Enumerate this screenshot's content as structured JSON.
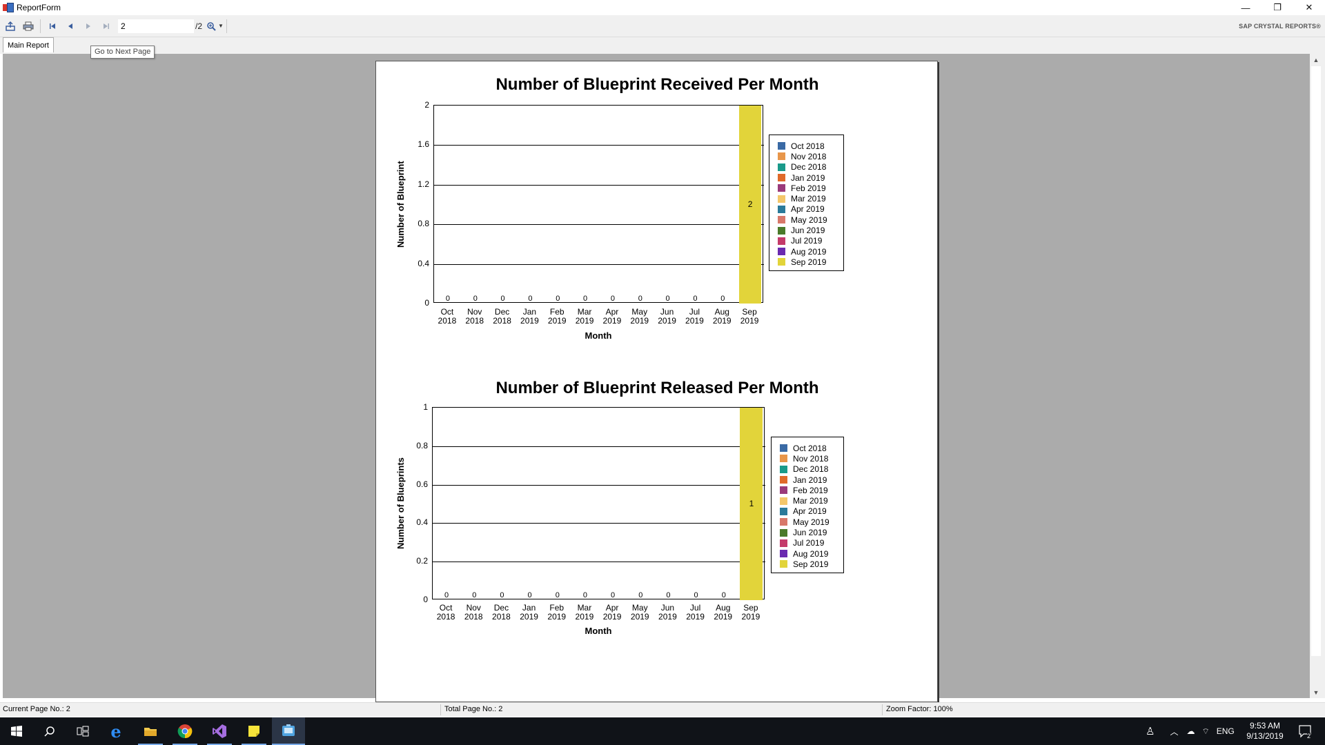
{
  "window": {
    "title": "ReportForm",
    "controls": {
      "minimize": "—",
      "restore": "❐",
      "close": "✕"
    }
  },
  "toolbar": {
    "page_value": "2",
    "page_total": "/2",
    "brand": "SAP CRYSTAL REPORTS®",
    "icons": [
      "export-icon",
      "print-icon",
      "first-page-icon",
      "previous-page-icon",
      "next-page-icon",
      "last-page-icon",
      "zoom-icon"
    ]
  },
  "tabs": [
    {
      "label": "Main Report"
    }
  ],
  "tooltip": "Go to Next Page",
  "chart_data": [
    {
      "type": "bar",
      "title": "Number of Blueprint Received Per Month",
      "xlabel": "Month",
      "ylabel": "Number of Blueprint",
      "ylim": [
        0,
        2
      ],
      "yticks": [
        "0",
        "0.4",
        "0.8",
        "1.2",
        "1.6",
        "2"
      ],
      "categories": [
        "Oct 2018",
        "Nov 2018",
        "Dec 2018",
        "Jan 2019",
        "Feb 2019",
        "Mar 2019",
        "Apr 2019",
        "May 2019",
        "Jun 2019",
        "Jul 2019",
        "Aug 2019",
        "Sep 2019"
      ],
      "category_lines": [
        [
          "Oct",
          "2018"
        ],
        [
          "Nov",
          "2018"
        ],
        [
          "Dec",
          "2018"
        ],
        [
          "Jan",
          "2019"
        ],
        [
          "Feb",
          "2019"
        ],
        [
          "Mar",
          "2019"
        ],
        [
          "Apr",
          "2019"
        ],
        [
          "May",
          "2019"
        ],
        [
          "Jun",
          "2019"
        ],
        [
          "Jul",
          "2019"
        ],
        [
          "Aug",
          "2019"
        ],
        [
          "Sep",
          "2019"
        ]
      ],
      "values": [
        0,
        0,
        0,
        0,
        0,
        0,
        0,
        0,
        0,
        0,
        0,
        2
      ],
      "value_labels": [
        "0",
        "0",
        "0",
        "0",
        "0",
        "0",
        "0",
        "0",
        "0",
        "0",
        "0",
        "2"
      ],
      "grid": true,
      "legend_position": "right"
    },
    {
      "type": "bar",
      "title": "Number of Blueprint Released Per Month",
      "xlabel": "Month",
      "ylabel": "Number of Blueprints",
      "ylim": [
        0,
        1
      ],
      "yticks": [
        "0",
        "0.2",
        "0.4",
        "0.6",
        "0.8",
        "1"
      ],
      "categories": [
        "Oct 2018",
        "Nov 2018",
        "Dec 2018",
        "Jan 2019",
        "Feb 2019",
        "Mar 2019",
        "Apr 2019",
        "May 2019",
        "Jun 2019",
        "Jul 2019",
        "Aug 2019",
        "Sep 2019"
      ],
      "category_lines": [
        [
          "Oct",
          "2018"
        ],
        [
          "Nov",
          "2018"
        ],
        [
          "Dec",
          "2018"
        ],
        [
          "Jan",
          "2019"
        ],
        [
          "Feb",
          "2019"
        ],
        [
          "Mar",
          "2019"
        ],
        [
          "Apr",
          "2019"
        ],
        [
          "May",
          "2019"
        ],
        [
          "Jun",
          "2019"
        ],
        [
          "Jul",
          "2019"
        ],
        [
          "Aug",
          "2019"
        ],
        [
          "Sep",
          "2019"
        ]
      ],
      "values": [
        0,
        0,
        0,
        0,
        0,
        0,
        0,
        0,
        0,
        0,
        0,
        1
      ],
      "value_labels": [
        "0",
        "0",
        "0",
        "0",
        "0",
        "0",
        "0",
        "0",
        "0",
        "0",
        "0",
        "1"
      ],
      "grid": true,
      "legend_position": "right"
    }
  ],
  "legend_colors": [
    "#3a6aa5",
    "#e8964a",
    "#1a9a8a",
    "#e06a2a",
    "#9a3a7a",
    "#f4c76a",
    "#2a7a9a",
    "#d8786a",
    "#4a7a2a",
    "#c43a6a",
    "#6a2ab0",
    "#e2d43a"
  ],
  "status": {
    "current_page": "Current Page No.: 2",
    "total_page": "Total Page No.: 2",
    "zoom": "Zoom Factor: 100%"
  },
  "taskbar": {
    "apps": [
      "start-icon",
      "search-icon",
      "task-view-icon",
      "edge-icon",
      "file-explorer-icon",
      "chrome-icon",
      "visual-studio-icon",
      "sticky-notes-icon",
      "report-app-icon"
    ],
    "language": "ENG",
    "time": "9:53 AM",
    "date": "9/13/2019",
    "notification_count": "2"
  }
}
